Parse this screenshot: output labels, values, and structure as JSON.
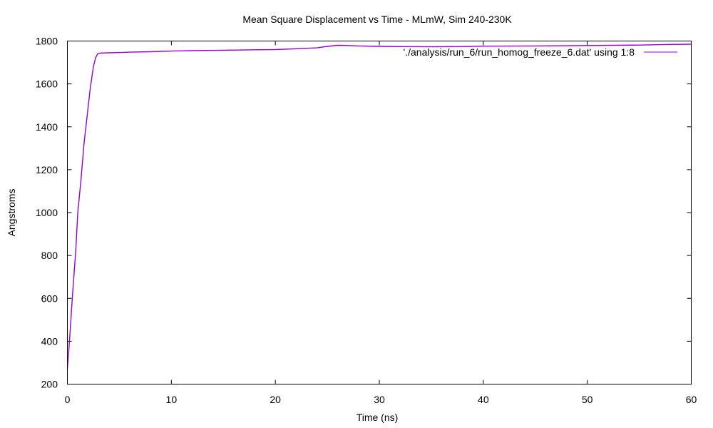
{
  "chart_data": {
    "type": "line",
    "title": "Mean Square Displacement vs Time - MLmW, Sim 240-230K",
    "xlabel": "Time (ns)",
    "ylabel": "Angstroms",
    "xlim": [
      0,
      60
    ],
    "ylim": [
      200,
      1800
    ],
    "xticks": [
      0,
      10,
      20,
      30,
      40,
      50,
      60
    ],
    "yticks": [
      200,
      400,
      600,
      800,
      1000,
      1200,
      1400,
      1600,
      1800
    ],
    "xtick_labels": [
      "0",
      "10",
      "20",
      "30",
      "40",
      "50",
      "60"
    ],
    "ytick_labels": [
      "200",
      "400",
      "600",
      "800",
      "1000",
      "1200",
      "1400",
      "1600",
      "1800"
    ],
    "grid": false,
    "legend_position": "top-right",
    "series": [
      {
        "name": "'./analysis/run_6/run_homog_freeze_6.dat' using 1:8",
        "color": "#9400d3",
        "x": [
          0,
          0.2,
          0.5,
          0.8,
          1.0,
          1.3,
          1.6,
          1.9,
          2.2,
          2.5,
          2.7,
          2.9,
          3.0,
          3.2,
          4,
          5,
          6,
          8,
          10,
          12,
          15,
          18,
          20,
          22,
          24,
          25,
          26,
          27,
          28,
          30,
          32,
          35,
          38,
          40,
          45,
          50,
          55,
          58,
          60
        ],
        "y": [
          270,
          400,
          620,
          820,
          1000,
          1150,
          1320,
          1450,
          1580,
          1680,
          1720,
          1740,
          1742,
          1744,
          1745,
          1746,
          1748,
          1750,
          1753,
          1755,
          1757,
          1759,
          1760,
          1764,
          1768,
          1775,
          1780,
          1779,
          1777,
          1775,
          1774,
          1773,
          1774,
          1776,
          1777,
          1779,
          1781,
          1784,
          1785
        ]
      }
    ]
  }
}
